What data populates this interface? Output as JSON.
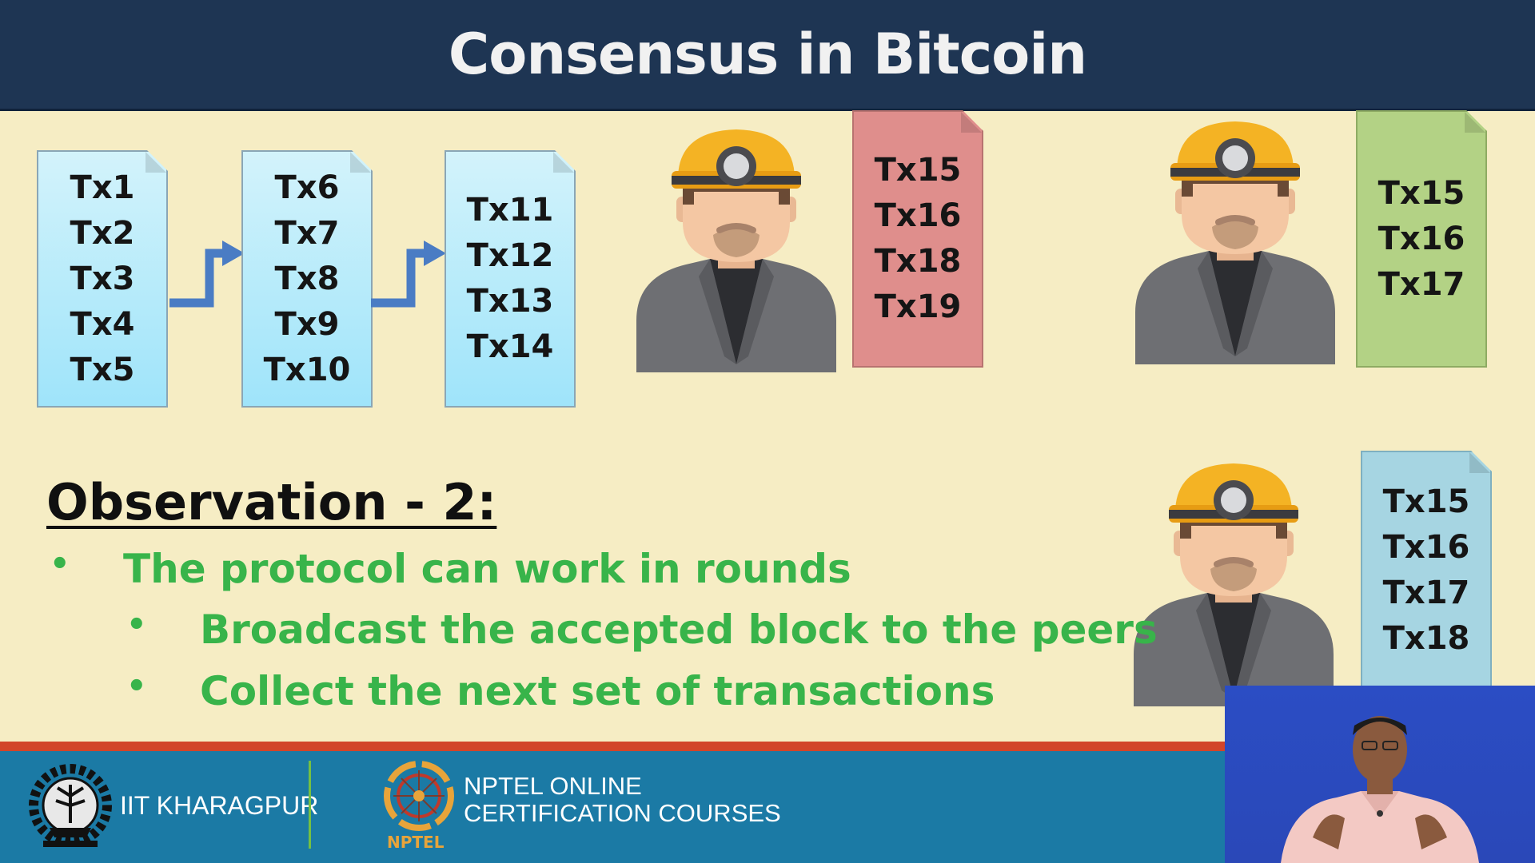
{
  "title": "Consensus in Bitcoin",
  "chain_blocks": [
    {
      "transactions": [
        "Tx1",
        "Tx2",
        "Tx3",
        "Tx4",
        "Tx5"
      ]
    },
    {
      "transactions": [
        "Tx6",
        "Tx7",
        "Tx8",
        "Tx9",
        "Tx10"
      ]
    },
    {
      "transactions": [
        "Tx11",
        "Tx12",
        "Tx13",
        "Tx14"
      ]
    }
  ],
  "miner_blocks": [
    {
      "color": "#df8e8c",
      "transactions": [
        "Tx15",
        "Tx16",
        "Tx18",
        "Tx19"
      ]
    },
    {
      "color": "#b3d285",
      "transactions": [
        "Tx15",
        "Tx16",
        "Tx17"
      ]
    },
    {
      "color": "#a6d5e2",
      "transactions": [
        "Tx15",
        "Tx16",
        "Tx17",
        "Tx18"
      ]
    }
  ],
  "observation": {
    "heading": "Observation - 2:",
    "bullet": "The protocol can work in rounds",
    "sub_bullets": [
      "Broadcast the accepted block to the peers",
      "Collect the next set of transactions"
    ],
    "text_color": "#38b44a"
  },
  "footer": {
    "institute": "IIT KHARAGPUR",
    "program_line1": "NPTEL ONLINE",
    "program_line2": "CERTIFICATION COURSES",
    "logo_text": "NPTEL"
  },
  "colors": {
    "title_bar": "#1e3553",
    "background": "#f6edc4",
    "footer": "#1b7aa5",
    "footer_stripe": "#d2452a",
    "arrow": "#4a7cc4"
  },
  "icons": [
    "miner-icon",
    "iit-kharagpur-emblem-icon",
    "nptel-logo-icon"
  ]
}
